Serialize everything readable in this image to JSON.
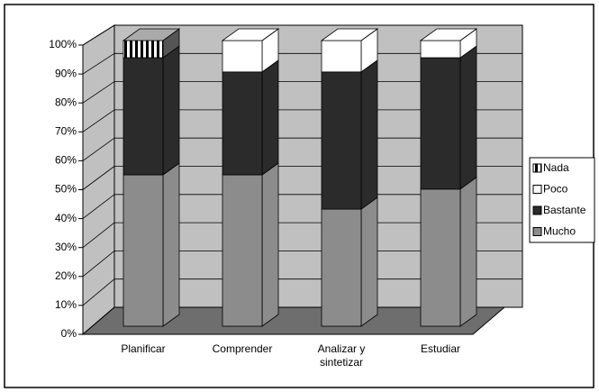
{
  "chart_data": {
    "type": "bar3d_stacked",
    "categories": [
      "Planificar",
      "Comprender",
      "Analizar y sintetizar",
      "Estudiar"
    ],
    "series": [
      {
        "name": "Mucho",
        "color": "#8c8c8c",
        "values": [
          53,
          53,
          41,
          48
        ]
      },
      {
        "name": "Bastante",
        "color": "#2b2b2b",
        "values": [
          41,
          36,
          48,
          46
        ]
      },
      {
        "name": "Poco",
        "color": "#ffffff",
        "values": [
          0,
          11,
          11,
          6
        ]
      },
      {
        "name": "Nada",
        "color": "#000000",
        "pattern": "vertical-stripes",
        "values": [
          6,
          0,
          0,
          0
        ]
      }
    ],
    "ylim": [
      0,
      100
    ],
    "yticks": [
      {
        "value": 0,
        "label": "0%"
      },
      {
        "value": 10,
        "label": "10%"
      },
      {
        "value": 20,
        "label": "20%"
      },
      {
        "value": 30,
        "label": "30%"
      },
      {
        "value": 40,
        "label": "40%"
      },
      {
        "value": 50,
        "label": "50%"
      },
      {
        "value": 60,
        "label": "60%"
      },
      {
        "value": 70,
        "label": "70%"
      },
      {
        "value": 80,
        "label": "80%"
      },
      {
        "value": 90,
        "label": "90%"
      },
      {
        "value": 100,
        "label": "100%"
      }
    ],
    "grid": true,
    "legend": "right"
  }
}
